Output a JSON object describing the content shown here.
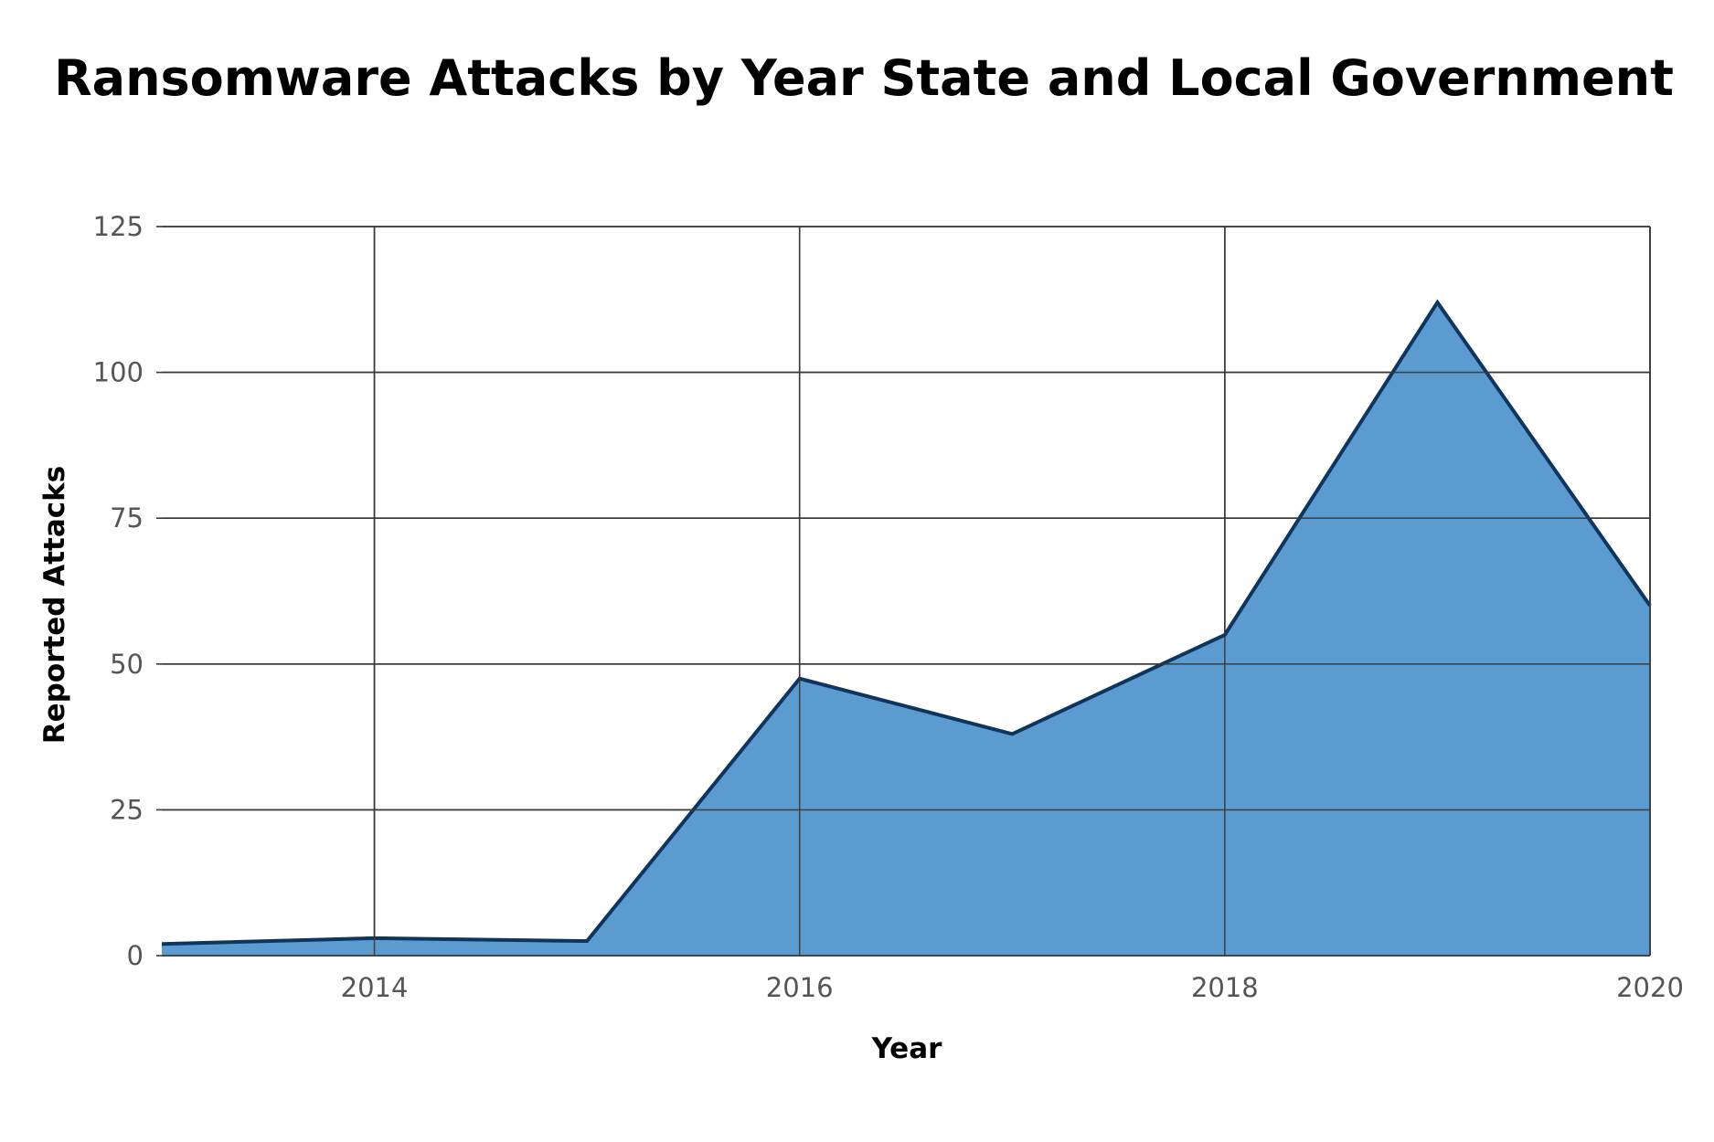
{
  "chart_data": {
    "type": "area",
    "title": "Ransomware Attacks by Year State and Local Government",
    "xlabel": "Year",
    "ylabel": "Reported Attacks",
    "x": [
      2013,
      2014,
      2015,
      2016,
      2017,
      2018,
      2019,
      2020
    ],
    "series": [
      {
        "values": [
          2,
          3,
          2.5,
          47.5,
          38,
          55,
          112,
          60
        ]
      }
    ],
    "xlim": [
      2013,
      2020
    ],
    "ylim": [
      0,
      125
    ],
    "x_ticks": [
      "2014",
      "2016",
      "2018",
      "2020"
    ],
    "y_ticks": [
      "0",
      "25",
      "50",
      "75",
      "100",
      "125"
    ],
    "grid": true,
    "legend": "none",
    "colors": {
      "fill": "#5b9bd0",
      "line": "#0e3560",
      "grid": "#3a3a3a"
    }
  }
}
